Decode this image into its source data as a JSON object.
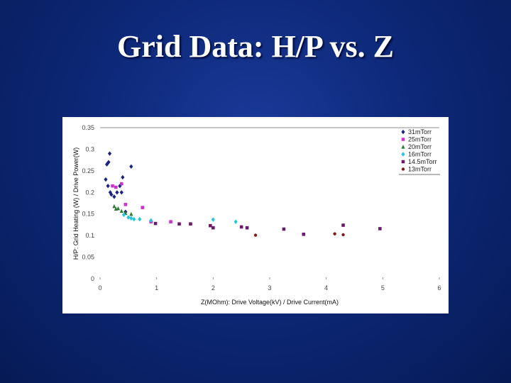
{
  "slide": {
    "title": "Grid Data: H/P vs. Z"
  },
  "chart_data": {
    "type": "scatter",
    "xlabel": "Z(MOhm): Drive Voltage(kV) / Drive Current(mA)",
    "ylabel": "H/P: Grid Heating (W) / Drive Power(W)",
    "xlim": [
      0,
      6
    ],
    "ylim": [
      0,
      0.35
    ],
    "x_ticks": [
      "0",
      "1",
      "2",
      "3",
      "4",
      "5",
      "6"
    ],
    "y_ticks": [
      "0",
      "0.05",
      "0.1",
      "0.15",
      "0.2",
      "0.25",
      "0.3",
      "0.35"
    ],
    "grid": false,
    "legend_position": "top-right",
    "series": [
      {
        "name": "31mTorr",
        "color": "#1a237e",
        "marker": "diamond",
        "points": [
          [
            0.15,
            0.27
          ],
          [
            0.12,
            0.265
          ],
          [
            0.17,
            0.29
          ],
          [
            0.1,
            0.23
          ],
          [
            0.14,
            0.215
          ],
          [
            0.18,
            0.2
          ],
          [
            0.2,
            0.195
          ],
          [
            0.25,
            0.19
          ],
          [
            0.3,
            0.2
          ],
          [
            0.38,
            0.2
          ],
          [
            0.4,
            0.235
          ],
          [
            0.55,
            0.26
          ],
          [
            0.35,
            0.215
          ],
          [
            0.45,
            0.155
          ]
        ]
      },
      {
        "name": "25mTorr",
        "color": "#cc33cc",
        "marker": "square",
        "points": [
          [
            0.22,
            0.215
          ],
          [
            0.28,
            0.212
          ],
          [
            0.38,
            0.22
          ],
          [
            0.45,
            0.172
          ],
          [
            0.75,
            0.165
          ],
          [
            0.9,
            0.132
          ],
          [
            1.25,
            0.132
          ]
        ]
      },
      {
        "name": "20mTorr",
        "color": "#2e7d32",
        "marker": "triangle",
        "points": [
          [
            0.25,
            0.168
          ],
          [
            0.28,
            0.162
          ],
          [
            0.32,
            0.163
          ],
          [
            0.38,
            0.157
          ],
          [
            0.45,
            0.152
          ],
          [
            0.55,
            0.15
          ]
        ]
      },
      {
        "name": "16mTorr",
        "color": "#26c6da",
        "marker": "diamond",
        "points": [
          [
            0.42,
            0.148
          ],
          [
            0.5,
            0.142
          ],
          [
            0.55,
            0.14
          ],
          [
            0.6,
            0.138
          ],
          [
            0.7,
            0.138
          ],
          [
            0.9,
            0.135
          ],
          [
            2.0,
            0.137
          ],
          [
            2.4,
            0.132
          ]
        ]
      },
      {
        "name": "14.5mTorr",
        "color": "#6a1b6a",
        "marker": "square",
        "points": [
          [
            0.98,
            0.128
          ],
          [
            1.4,
            0.127
          ],
          [
            1.6,
            0.127
          ],
          [
            1.95,
            0.123
          ],
          [
            2.0,
            0.118
          ],
          [
            2.5,
            0.12
          ],
          [
            2.6,
            0.118
          ],
          [
            3.25,
            0.115
          ],
          [
            3.6,
            0.103
          ],
          [
            4.3,
            0.124
          ],
          [
            4.95,
            0.116
          ]
        ]
      },
      {
        "name": "13mTorr",
        "color": "#7b1e1e",
        "marker": "circle",
        "points": [
          [
            2.75,
            0.101
          ],
          [
            4.15,
            0.104
          ],
          [
            4.3,
            0.102
          ]
        ]
      }
    ]
  }
}
